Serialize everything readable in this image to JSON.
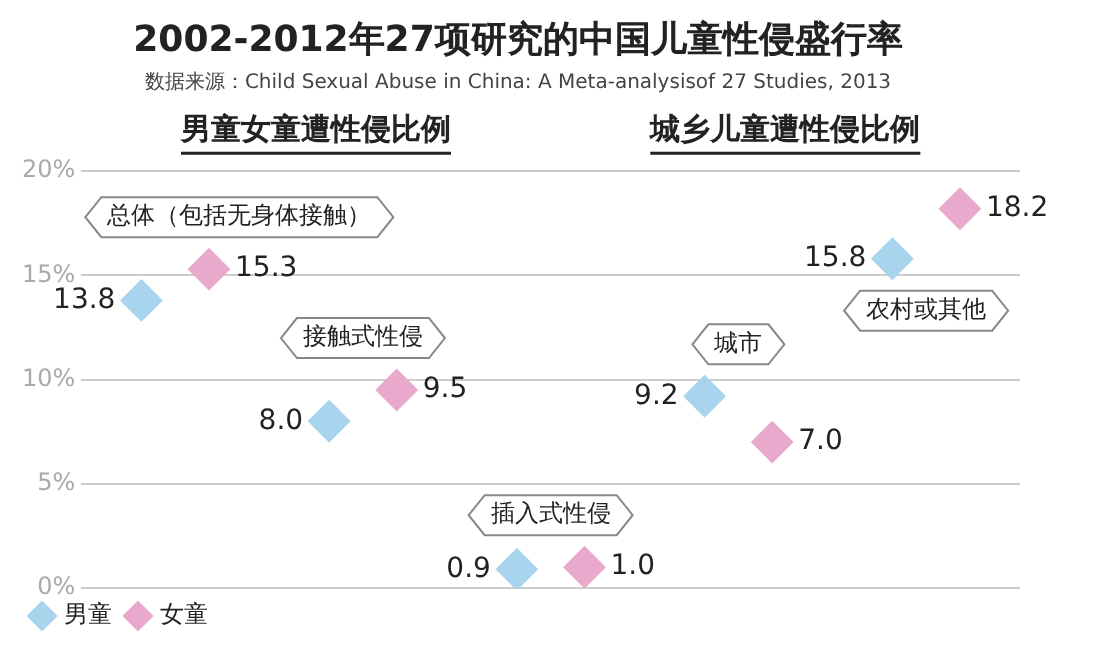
{
  "chart_data": {
    "type": "scatter",
    "title": "2002-2012年27项研究的中国儿童性侵盛行率",
    "subtitle": "数据来源：Child Sexual Abuse in China: A Meta-analysisof 27 Studies, 2013",
    "annotations": [
      "男童女童遭性侵比例",
      "城乡儿童遭性侵比例"
    ],
    "categories": [
      "总体（包括无身体接触）",
      "接触式性侵",
      "插入式性侵",
      "城市",
      "农村或其他"
    ],
    "series": [
      {
        "name": "男童",
        "color": "#a9d4ee",
        "values": [
          13.8,
          8.0,
          0.9,
          9.2,
          15.8
        ],
        "value_labels": [
          "13.8",
          "8.0",
          "0.9",
          "9.2",
          "15.8"
        ]
      },
      {
        "name": "女童",
        "color": "#e8a9cc",
        "values": [
          15.3,
          9.5,
          1.0,
          7.0,
          18.2
        ],
        "value_labels": [
          "15.3",
          "9.5",
          "1.0",
          "7.0",
          "18.2"
        ]
      }
    ],
    "ylim": [
      0,
      20
    ],
    "yticks": [
      {
        "value": 0,
        "label": "0%"
      },
      {
        "value": 5,
        "label": "5%"
      },
      {
        "value": 10,
        "label": "10%"
      },
      {
        "value": 15,
        "label": "15%"
      },
      {
        "value": 20,
        "label": "20%"
      }
    ],
    "grid": "y",
    "legend": "bottom left",
    "marker": "diamond"
  }
}
